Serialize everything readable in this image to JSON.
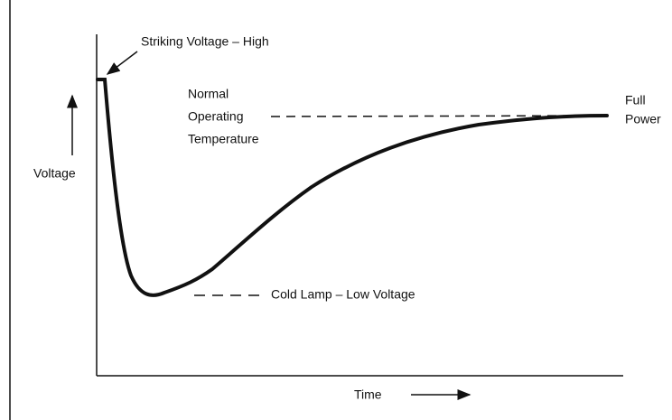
{
  "diagram": {
    "y_label": "Voltage",
    "x_label": "Time",
    "annotations": {
      "striking": "Striking Voltage – High",
      "normal": [
        "Normal",
        "Operating",
        "Temperature"
      ],
      "full": [
        "Full",
        "Power"
      ],
      "cold": "Cold Lamp – Low Voltage"
    }
  }
}
